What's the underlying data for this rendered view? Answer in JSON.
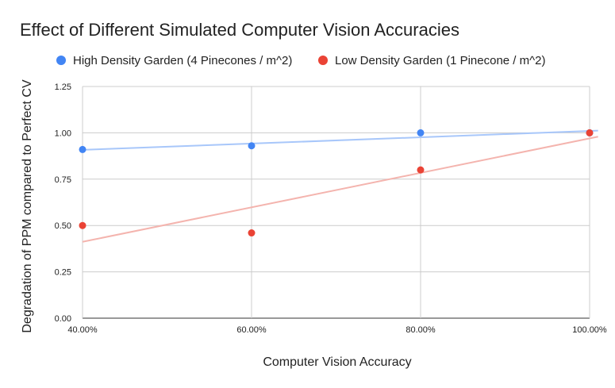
{
  "chart_data": {
    "type": "scatter",
    "title": "Effect of Different Simulated Computer Vision Accuracies",
    "xlabel": "Computer Vision Accuracy",
    "ylabel": "Degradation of PPM compared to Perfect CV",
    "x_ticks": [
      "40.00%",
      "60.00%",
      "80.00%",
      "100.00%"
    ],
    "y_ticks": [
      "0.00",
      "0.25",
      "0.50",
      "0.75",
      "1.00",
      "1.25"
    ],
    "xlim": [
      0.4,
      1.0
    ],
    "ylim": [
      0,
      1.25
    ],
    "grid": true,
    "legend_position": "top",
    "series": [
      {
        "name": "High Density Garden (4 Pinecones / m^2)",
        "color": "#4285F4",
        "trendline_color": "#A8C7FA",
        "x": [
          0.4,
          0.6,
          0.8,
          1.0
        ],
        "y": [
          0.91,
          0.93,
          1.0,
          1.0
        ],
        "trendline": {
          "intercept": 0.84,
          "slope": 0.17
        }
      },
      {
        "name": "Low Density Garden (1 Pinecone / m^2)",
        "color": "#EA4335",
        "trendline_color": "#F4B4AE",
        "x": [
          0.4,
          0.6,
          0.8,
          1.0
        ],
        "y": [
          0.5,
          0.46,
          0.8,
          1.0
        ],
        "trendline": {
          "intercept": 0.04,
          "slope": 0.93
        }
      }
    ]
  }
}
